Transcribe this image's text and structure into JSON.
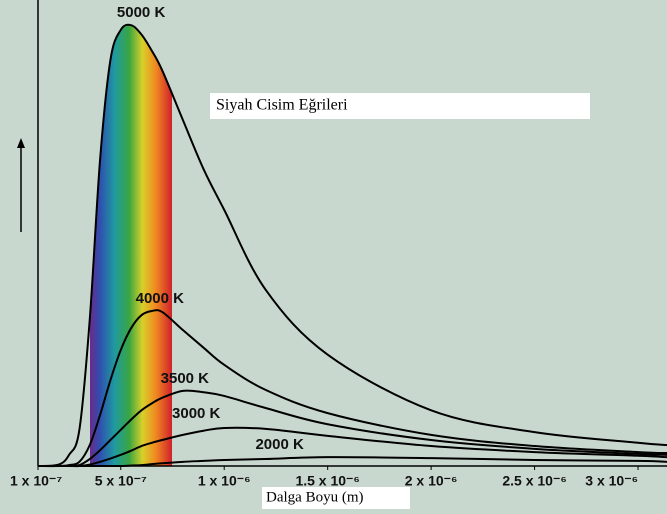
{
  "chart_data": {
    "type": "line",
    "title": "Siyah Cisim Eğrileri",
    "x_label": "Dalga Boyu (m)",
    "x": [
      1e-07,
      2e-07,
      2.5e-07,
      3e-07,
      3.5e-07,
      4e-07,
      4.5e-07,
      5e-07,
      5.5e-07,
      6e-07,
      6.5e-07,
      7e-07,
      8e-07,
      9e-07,
      1e-06,
      1.2e-06,
      1.5e-06,
      2e-06,
      2.5e-06,
      3e-06,
      3.14e-06
    ],
    "series": [
      {
        "name": "5000 K",
        "color": "#000000",
        "values": [
          0,
          0.3,
          2.4,
          7.8,
          31.5,
          66,
          87.5,
          94,
          95,
          93,
          89.5,
          85.3,
          74.6,
          64,
          55.2,
          38,
          24,
          12,
          7.3,
          5,
          4.5
        ]
      },
      {
        "name": "4000 K",
        "color": "#000000",
        "values": [
          0,
          0,
          0.2,
          0.9,
          4.5,
          11,
          18.5,
          25,
          29.7,
          32.5,
          33.4,
          33.2,
          29.3,
          25.5,
          21.8,
          16.4,
          11.4,
          6.7,
          4.3,
          3,
          2.8
        ]
      },
      {
        "name": "3500 K",
        "color": "#000000",
        "values": [
          0,
          0,
          0,
          0.2,
          1.5,
          3.4,
          5.6,
          7.8,
          10,
          12,
          13.5,
          14.7,
          16.2,
          15.9,
          15.1,
          12.5,
          9,
          5.6,
          3.7,
          2.6,
          2.4
        ]
      },
      {
        "name": "3000 K",
        "color": "#000000",
        "values": [
          0,
          0,
          0,
          0,
          0.3,
          0.9,
          1.6,
          2.4,
          3.3,
          4.3,
          5,
          5.6,
          6.7,
          7.6,
          8.2,
          8,
          6.5,
          4.3,
          3,
          2.2,
          1.9
        ]
      },
      {
        "name": "2000 K",
        "color": "#000000",
        "values": [
          0,
          0,
          0,
          0,
          0,
          0,
          0,
          0,
          0.1,
          0.2,
          0.4,
          0.6,
          0.9,
          1.1,
          1.3,
          1.5,
          1.9,
          1.7,
          1.3,
          1.1,
          0.9
        ]
      }
    ],
    "xlim": [
      1e-07,
      3.14e-06
    ],
    "ylim": [
      0,
      100
    ],
    "xticks": [
      {
        "value": 1e-07,
        "label": "1 x 10⁻⁷"
      },
      {
        "value": 5e-07,
        "label": "5 x 10⁻⁷"
      },
      {
        "value": 1e-06,
        "label": "1 x 10⁻⁶"
      },
      {
        "value": 1.5e-06,
        "label": "1.5 x 10⁻⁶"
      },
      {
        "value": 2e-06,
        "label": "2 x 10⁻⁶"
      },
      {
        "value": 2.5e-06,
        "label": "2.5 x 10⁻⁶"
      },
      {
        "value": 3e-06,
        "label": "3 x 10⁻⁶"
      }
    ],
    "grid": false
  }
}
